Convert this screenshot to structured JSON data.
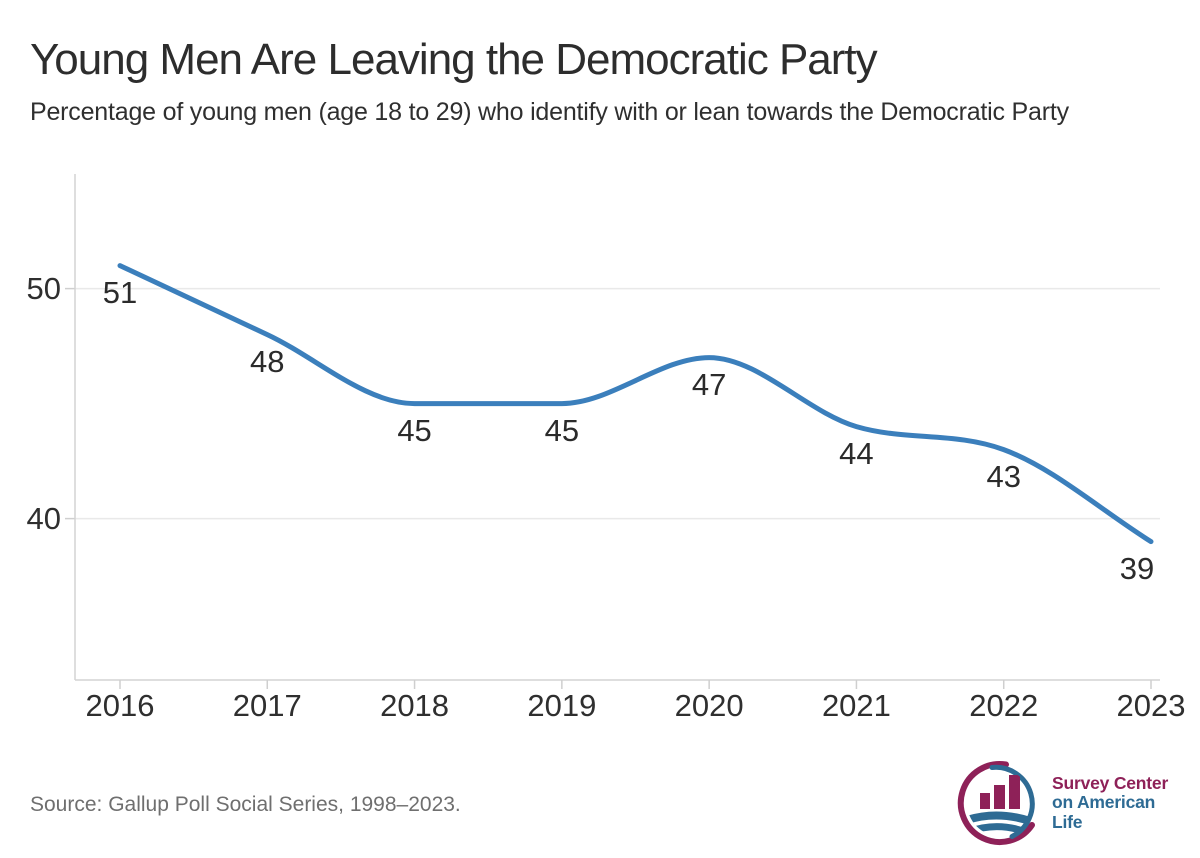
{
  "header": {
    "title": "Young Men Are Leaving the Democratic Party",
    "subtitle": "Percentage of young men (age 18 to 29) who identify with or lean towards the Democratic Party"
  },
  "chart_data": {
    "type": "line",
    "title": "Young Men Are Leaving the Democratic Party",
    "subtitle": "Percentage of young men (age 18 to 29) who identify with or lean towards the Democratic Party",
    "x": [
      "2016",
      "2017",
      "2018",
      "2019",
      "2020",
      "2021",
      "2022",
      "2023"
    ],
    "values": [
      51,
      48,
      45,
      45,
      47,
      44,
      43,
      39
    ],
    "data_labels": [
      "51",
      "48",
      "45",
      "45",
      "47",
      "44",
      "43",
      "39"
    ],
    "xlabel": "",
    "ylabel": "",
    "y_ticks": [
      50,
      40
    ],
    "ylim": [
      33,
      55
    ],
    "grid": "horizontal",
    "legend": "none",
    "line_color": "#3b7fbc",
    "grid_color": "#e9e9e9",
    "axis_color": "#d4d4d4",
    "tick_color": "#cfcfcf",
    "text_color": "#2b2b2b"
  },
  "footer": {
    "source": "Source: Gallup Poll Social Series, 1998–2023.",
    "logo": {
      "line1": "Survey Center",
      "line2": "on American Life",
      "maroon": "#8e2158",
      "blue": "#2e6b94"
    }
  }
}
